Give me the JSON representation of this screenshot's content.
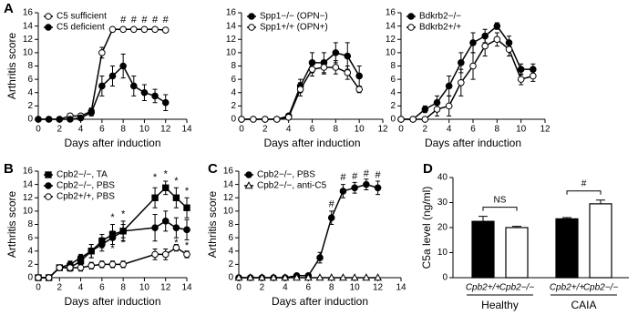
{
  "chart_data": [
    {
      "type": "line",
      "panel": "A",
      "ylabel": "Arthritis score",
      "xlabel": "Days after induction",
      "xlim": [
        0,
        14
      ],
      "xticks": [
        0,
        2,
        4,
        6,
        8,
        10,
        12,
        14
      ],
      "ylim": [
        0,
        16
      ],
      "yticks": [
        0,
        2,
        4,
        6,
        8,
        10,
        12,
        14,
        16
      ],
      "legend": "upper left",
      "x": [
        0,
        1,
        2,
        3,
        4,
        5,
        6,
        7,
        8,
        9,
        10,
        11,
        12
      ],
      "series": [
        {
          "name": "C5 sufficient",
          "color": "#ffffff",
          "marker": "circle",
          "values": [
            0,
            0,
            0,
            0.5,
            0.5,
            1.2,
            10,
            13.5,
            13.5,
            13.5,
            13.5,
            13.5,
            13.4
          ],
          "errors": [
            0,
            0,
            0,
            0.2,
            0.3,
            0.5,
            0.8,
            0.3,
            0.3,
            0.3,
            0.3,
            0.3,
            0.3
          ]
        },
        {
          "name": "C5 deficient",
          "color": "#000000",
          "marker": "circle",
          "values": [
            0,
            0,
            0,
            0,
            0.2,
            1,
            5,
            6.5,
            8,
            5,
            4,
            3.5,
            2.5
          ],
          "errors": [
            0,
            0,
            0,
            0,
            0.2,
            0.5,
            1.5,
            1.5,
            1.8,
            1.5,
            1.2,
            1,
            1.2
          ]
        }
      ],
      "annotations": [
        {
          "text": "#",
          "x": 8,
          "y": 14.9
        },
        {
          "text": "#",
          "x": 9,
          "y": 14.9
        },
        {
          "text": "#",
          "x": 10,
          "y": 14.9
        },
        {
          "text": "#",
          "x": 11,
          "y": 14.9
        },
        {
          "text": "#",
          "x": 12,
          "y": 14.9
        }
      ]
    },
    {
      "type": "line",
      "xlabel": "Days after induction",
      "xlim": [
        0,
        12
      ],
      "xticks": [
        0,
        2,
        4,
        6,
        8,
        10,
        12
      ],
      "ylim": [
        0,
        16
      ],
      "yticks": [
        0,
        2,
        4,
        6,
        8,
        10,
        12,
        14,
        16
      ],
      "legend": "upper left",
      "x": [
        0,
        1,
        2,
        3,
        4,
        5,
        6,
        7,
        8,
        9,
        10
      ],
      "series": [
        {
          "name": "Spp1−/− (OPN−)",
          "color": "#000000",
          "marker": "circle",
          "values": [
            0,
            0,
            0,
            0,
            0.5,
            5,
            8.5,
            8.5,
            10,
            9.5,
            6.5
          ],
          "errors": [
            0,
            0,
            0,
            0,
            0.3,
            1,
            1.5,
            1.5,
            1.5,
            2,
            1.5
          ]
        },
        {
          "name": "Spp1+/+ (OPN+)",
          "color": "#ffffff",
          "marker": "circle",
          "values": [
            0,
            0,
            0,
            0,
            0.3,
            4.5,
            7.5,
            7.8,
            7.8,
            7,
            4.5
          ],
          "errors": [
            0,
            0,
            0,
            0,
            0.3,
            1,
            1,
            1,
            1,
            1,
            0.5
          ]
        }
      ]
    },
    {
      "type": "line",
      "xlabel": "Days after induction",
      "xlim": [
        0,
        12
      ],
      "xticks": [
        0,
        2,
        4,
        6,
        8,
        10,
        12
      ],
      "ylim": [
        0,
        16
      ],
      "yticks": [
        0,
        2,
        4,
        6,
        8,
        10,
        12,
        14,
        16
      ],
      "legend": "upper left",
      "x": [
        0,
        1,
        2,
        3,
        4,
        5,
        6,
        7,
        8,
        9,
        10,
        11
      ],
      "series": [
        {
          "name": "Bdkrb2−/−",
          "color": "#000000",
          "marker": "circle",
          "values": [
            0,
            0,
            1.5,
            2.5,
            5,
            8.5,
            11.5,
            12.5,
            14,
            11.5,
            7.5,
            7.5
          ],
          "errors": [
            0,
            0,
            0.5,
            1,
            1.5,
            1.5,
            1.5,
            1,
            0.5,
            1,
            0.8,
            0.8
          ]
        },
        {
          "name": "Bdkrb2+/+",
          "color": "#ffffff",
          "marker": "circle",
          "values": [
            0,
            0,
            0,
            1.5,
            2,
            5.5,
            8,
            11,
            12,
            10.5,
            6,
            6.5
          ],
          "errors": [
            0,
            0,
            0,
            1,
            1.5,
            2,
            2,
            1.5,
            1,
            1,
            0.8,
            0.8
          ]
        }
      ]
    },
    {
      "type": "line",
      "panel": "B",
      "ylabel": "Arthritis score",
      "xlabel": "Days after induction",
      "xlim": [
        0,
        14
      ],
      "xticks": [
        0,
        2,
        4,
        6,
        8,
        10,
        12,
        14
      ],
      "ylim": [
        0,
        16
      ],
      "yticks": [
        0,
        2,
        4,
        6,
        8,
        10,
        12,
        14,
        16
      ],
      "legend": "upper left",
      "x": [
        0,
        1,
        2,
        3,
        4,
        5,
        6,
        7,
        8,
        11,
        12,
        13,
        14
      ],
      "series": [
        {
          "name": "Cpb2−/−, TA",
          "color": "#000000",
          "marker": "square",
          "values": [
            0,
            0,
            1.5,
            1.5,
            2.5,
            4,
            5.5,
            6.5,
            7,
            12,
            13.5,
            12,
            10.5
          ],
          "errors": [
            0,
            0,
            0.3,
            0.5,
            0.5,
            1,
            1,
            1.5,
            1.5,
            1.5,
            1,
            1.5,
            1.5
          ]
        },
        {
          "name": "Cpb2−/−, PBS",
          "color": "#000000",
          "marker": "circle",
          "values": [
            0,
            0,
            1.5,
            2,
            3,
            4,
            5,
            6,
            7,
            7.5,
            8.5,
            7.5,
            7.2
          ],
          "errors": [
            0,
            0,
            0.3,
            0.5,
            0.5,
            1,
            1,
            1,
            1,
            2,
            1.5,
            1.5,
            1.5
          ]
        },
        {
          "name": "Cpb2+/+, PBS",
          "color": "#ffffff",
          "marker": "circle",
          "values": [
            0,
            0,
            1.5,
            1.5,
            1.5,
            1.8,
            2,
            2,
            2,
            3.5,
            3.5,
            4.5,
            3.5
          ],
          "errors": [
            0,
            0,
            0.3,
            0.5,
            0.5,
            0.5,
            0.5,
            0.5,
            0.5,
            0.8,
            0.8,
            0.5,
            0.5
          ]
        }
      ],
      "annotations": [
        {
          "text": "*",
          "x": 7,
          "y": 9
        },
        {
          "text": "*",
          "x": 8,
          "y": 9.5
        },
        {
          "text": "*",
          "x": 11,
          "y": 15
        },
        {
          "text": "*",
          "x": 12,
          "y": 15.5
        },
        {
          "text": "*",
          "x": 13,
          "y": 14.5
        },
        {
          "text": "*",
          "x": 14,
          "y": 13
        },
        {
          "text": "*",
          "x": 7,
          "y": 4.3
        },
        {
          "text": "*",
          "x": 8,
          "y": 5.2
        },
        {
          "text": "*",
          "x": 13,
          "y": 5.2
        },
        {
          "text": "*",
          "x": 14,
          "y": 4.8
        }
      ]
    },
    {
      "type": "line",
      "panel": "C",
      "ylabel": "Arthritis score",
      "xlabel": "Days after induction",
      "xlim": [
        0,
        14
      ],
      "xticks": [
        0,
        2,
        4,
        6,
        8,
        10,
        12,
        14
      ],
      "ylim": [
        0,
        16
      ],
      "yticks": [
        0,
        2,
        4,
        6,
        8,
        10,
        12,
        14,
        16
      ],
      "legend": "upper left",
      "x": [
        0,
        1,
        2,
        3,
        4,
        5,
        6,
        7,
        8,
        9,
        10,
        11,
        12
      ],
      "series": [
        {
          "name": "Cpb2−/−, PBS",
          "color": "#000000",
          "marker": "circle",
          "values": [
            0,
            0,
            0,
            0,
            0,
            0.3,
            0.3,
            3,
            9,
            13,
            13.5,
            14,
            13.5
          ],
          "errors": [
            0,
            0,
            0,
            0,
            0,
            0.3,
            0.3,
            0.8,
            1,
            1,
            0.8,
            0.8,
            1
          ]
        },
        {
          "name": "Cpb2−/−, anti-C5",
          "color": "#ffffff",
          "marker": "triangle",
          "values": [
            0,
            0,
            0,
            0,
            0,
            0,
            0,
            0,
            0,
            0,
            0,
            0,
            0
          ],
          "errors": [
            0,
            0,
            0,
            0,
            0,
            0,
            0,
            0,
            0,
            0,
            0,
            0,
            0
          ]
        }
      ],
      "annotations": [
        {
          "text": "#",
          "x": 8,
          "y": 11
        },
        {
          "text": "#",
          "x": 9,
          "y": 15
        },
        {
          "text": "#",
          "x": 10,
          "y": 15.2
        },
        {
          "text": "#",
          "x": 11,
          "y": 15.6
        },
        {
          "text": "#",
          "x": 12,
          "y": 15.4
        }
      ]
    },
    {
      "type": "bar",
      "panel": "D",
      "ylabel": "C5a level (ng/ml)",
      "ylim": [
        0,
        40
      ],
      "yticks": [
        0,
        10,
        20,
        30,
        40
      ],
      "categories": [
        "Cpb2+/+",
        "Cpb2−/−",
        "Cpb2+/+",
        "Cpb2−/−"
      ],
      "groups": [
        "Healthy",
        "CAIA"
      ],
      "values": [
        22.5,
        20,
        23.5,
        29.5
      ],
      "errors": [
        2,
        0.5,
        0.5,
        1.5
      ],
      "colors": [
        "#000000",
        "#ffffff",
        "#000000",
        "#ffffff"
      ],
      "annotations": [
        {
          "text": "NS"
        },
        {
          "text": "#"
        }
      ]
    }
  ]
}
